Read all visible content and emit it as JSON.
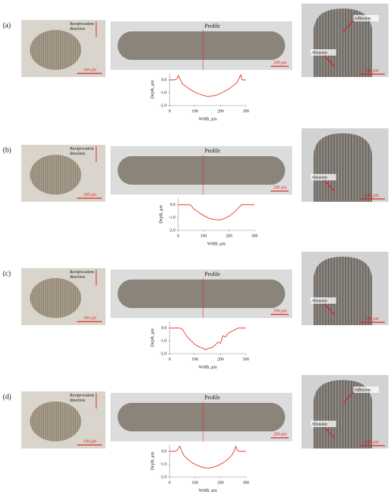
{
  "panels": [
    {
      "label": "(a)",
      "left": {
        "annotation": "Reciprocation direction",
        "scale": "100 μm"
      },
      "middle": {
        "annotation": "Profile",
        "scale": "200 μm"
      },
      "right": {
        "annotations": [
          "Adhesion",
          "Abrasion"
        ],
        "scale": "100 μm"
      },
      "profile": {
        "type": "line",
        "x": [
          0,
          20,
          30,
          35,
          40,
          50,
          70,
          90,
          110,
          130,
          150,
          170,
          190,
          210,
          230,
          250,
          265,
          275,
          280,
          285,
          300
        ],
        "values": [
          0,
          0,
          0.1,
          0.35,
          0.1,
          -0.3,
          -0.6,
          -0.85,
          -1.05,
          -1.2,
          -1.3,
          -1.25,
          -1.15,
          -0.95,
          -0.75,
          -0.45,
          -0.2,
          0.2,
          0.4,
          0,
          0
        ],
        "color": "#e03020",
        "xlim": [
          0,
          300
        ],
        "ylim": [
          -2,
          0.5
        ],
        "xticks": [
          0,
          100,
          200,
          300
        ],
        "yticks": [
          {
            "value": 0,
            "label": "0.0"
          },
          {
            "value": -1,
            "label": "-1.0"
          },
          {
            "value": -2,
            "label": "-2.0"
          }
        ],
        "xlabel": "Width, μm",
        "ylabel": "Depth, μm"
      }
    },
    {
      "label": "(b)",
      "left": {
        "annotation": "Reciprocation direction",
        "scale": "100 μm"
      },
      "middle": {
        "annotation": "Profile",
        "scale": "200 μm"
      },
      "right": {
        "annotations": [
          "Abrasion"
        ],
        "scale": "100 μm"
      },
      "profile": {
        "type": "line",
        "x": [
          0,
          20,
          40,
          50,
          60,
          80,
          100,
          120,
          140,
          160,
          180,
          200,
          220,
          240,
          250,
          260,
          280,
          300
        ],
        "values": [
          0,
          0,
          0,
          -0.05,
          -0.3,
          -0.6,
          -0.85,
          -1.05,
          -1.15,
          -1.2,
          -1.1,
          -0.9,
          -0.6,
          -0.2,
          0,
          0,
          0,
          0
        ],
        "color": "#e03020",
        "xlim": [
          0,
          300
        ],
        "ylim": [
          -2,
          0.5
        ],
        "xticks": [
          0,
          100,
          200,
          300
        ],
        "yticks": [
          {
            "value": 0,
            "label": "0.0"
          },
          {
            "value": -1,
            "label": "-1.0"
          },
          {
            "value": -2,
            "label": "-2.0"
          }
        ],
        "xlabel": "Width, μm",
        "ylabel": "Depth, μm"
      }
    },
    {
      "label": "(c)",
      "left": {
        "annotation": "Reciprocation direction",
        "scale": "100 μm"
      },
      "middle": {
        "annotation": "Profile",
        "scale": "200 μm"
      },
      "right": {
        "annotations": [
          "Abrasion"
        ],
        "scale": "100 μm"
      },
      "profile": {
        "type": "line",
        "x": [
          0,
          20,
          40,
          50,
          60,
          70,
          80,
          90,
          100,
          110,
          120,
          130,
          140,
          150,
          160,
          170,
          180,
          190,
          200,
          210,
          220,
          230,
          240,
          250,
          260,
          270,
          280,
          300
        ],
        "values": [
          0,
          0,
          0,
          -0.1,
          -0.4,
          -0.7,
          -0.9,
          -1.1,
          -1.3,
          -1.4,
          -1.5,
          -1.55,
          -1.7,
          -1.6,
          -1.55,
          -1.5,
          -1.3,
          -1.1,
          -1.2,
          -0.6,
          -0.7,
          -0.4,
          -0.3,
          -0.2,
          -0.1,
          0,
          0,
          0
        ],
        "color": "#e03020",
        "xlim": [
          0,
          300
        ],
        "ylim": [
          -2,
          0.5
        ],
        "xticks": [
          0,
          100,
          200,
          300
        ],
        "yticks": [
          {
            "value": 0,
            "label": "0.0"
          },
          {
            "value": -1,
            "label": "-1.0"
          },
          {
            "value": -2,
            "label": "-2.0"
          }
        ],
        "xlabel": "Width, μm",
        "ylabel": "Depth, μm"
      }
    },
    {
      "label": "(d)",
      "left": {
        "annotation": "Reciprocation direction",
        "scale": "100 μm"
      },
      "middle": {
        "annotation": "Profile",
        "scale": "200 μm"
      },
      "right": {
        "annotations": [
          "Adhesion",
          "Abrasion"
        ],
        "scale": "100 μm"
      },
      "profile": {
        "type": "line",
        "x": [
          0,
          20,
          30,
          40,
          45,
          55,
          70,
          90,
          110,
          130,
          150,
          170,
          190,
          210,
          230,
          245,
          255,
          260,
          265,
          275,
          300
        ],
        "values": [
          0,
          0,
          0.1,
          0.4,
          0.15,
          -0.3,
          -0.6,
          -0.9,
          -1.1,
          -1.25,
          -1.3,
          -1.25,
          -1.1,
          -0.9,
          -0.6,
          -0.3,
          0.1,
          0.4,
          0.1,
          0,
          0
        ],
        "color": "#e03020",
        "xlim": [
          0,
          300
        ],
        "ylim": [
          -2,
          0.5
        ],
        "xticks": [
          0,
          100,
          200,
          300
        ],
        "yticks": [
          {
            "value": 0,
            "label": "0.0"
          },
          {
            "value": -1,
            "label": "-1.0"
          },
          {
            "value": -2,
            "label": "-2.0"
          }
        ],
        "xlabel": "Width, μm",
        "ylabel": "Depth, μm"
      }
    }
  ]
}
